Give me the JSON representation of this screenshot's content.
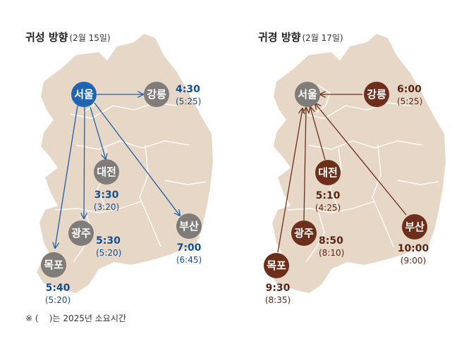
{
  "colors": {
    "land": "#e6d7c6",
    "border": "#ffffff",
    "node_gray": "#807c79",
    "blue_node": "#1f63b5",
    "blue_arrow": "#1e5fa8",
    "blue_text": "#154e92",
    "brown_node": "#6d2e1b",
    "brown_arrow": "#6a2d1a",
    "brown_text": "#5b2514",
    "note_text": "#333333"
  },
  "left_panel": {
    "title": "귀성 방향",
    "subtitle": "(2월 15일)",
    "cities": {
      "seoul": {
        "name": "서울"
      },
      "gangneung": {
        "name": "강릉",
        "time": "4:30",
        "prev": "(5:25)"
      },
      "daejeon": {
        "name": "대전",
        "time": "3:30",
        "prev": "(3:20)"
      },
      "gwangju": {
        "name": "광주",
        "time": "5:30",
        "prev": "(5:20)"
      },
      "busan": {
        "name": "부산",
        "time": "7:00",
        "prev": "(6:45)"
      },
      "mokpo": {
        "name": "목포",
        "time": "5:40",
        "prev": "(5:20)"
      }
    }
  },
  "right_panel": {
    "title": "귀경 방향",
    "subtitle": "(2월 17일)",
    "cities": {
      "seoul": {
        "name": "서울"
      },
      "gangneung": {
        "name": "강릉",
        "time": "6:00",
        "prev": "(5:25)"
      },
      "daejeon": {
        "name": "대전",
        "time": "5:10",
        "prev": "(4:25)"
      },
      "gwangju": {
        "name": "광주",
        "time": "8:50",
        "prev": "(8:10)"
      },
      "busan": {
        "name": "부산",
        "time": "10:00",
        "prev": "(9:00)"
      },
      "mokpo": {
        "name": "목포",
        "time": "9:30",
        "prev": "(8:35)"
      }
    }
  },
  "footnote": "※ (    )는 2025년 소요시간"
}
